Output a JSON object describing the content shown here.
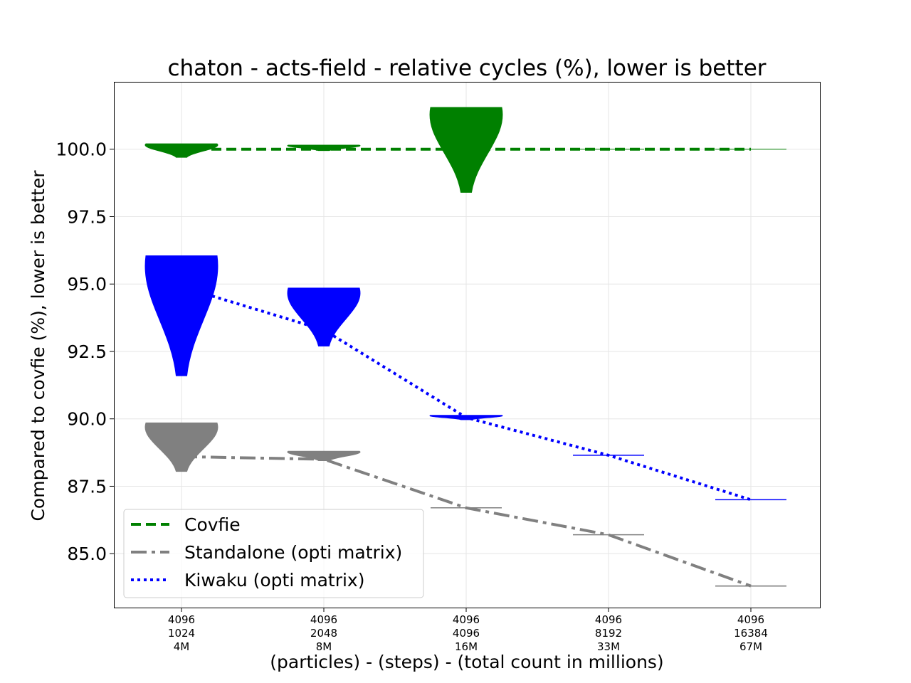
{
  "chart_data": {
    "type": "line",
    "title": "chaton - acts-field - relative cycles (%), lower is better",
    "xlabel": "(particles) - (steps) - (total count in millions)",
    "ylabel": "Compared to covfie (%), lower is better",
    "ylim": [
      83.0,
      102.5
    ],
    "yticks": [
      85.0,
      87.5,
      90.0,
      92.5,
      95.0,
      97.5,
      100.0
    ],
    "ytick_labels": [
      "85.0",
      "87.5",
      "90.0",
      "92.5",
      "95.0",
      "97.5",
      "100.0"
    ],
    "grid": true,
    "legend_position": "bottom-left",
    "categories": [
      [
        "4096",
        "1024",
        "4M"
      ],
      [
        "4096",
        "2048",
        "8M"
      ],
      [
        "4096",
        "4096",
        "16M"
      ],
      [
        "4096",
        "8192",
        "33M"
      ],
      [
        "4096",
        "16384",
        "67M"
      ]
    ],
    "series": [
      {
        "name": "Covfie",
        "color": "#008000",
        "line_style": "dashed",
        "values": [
          100.0,
          100.0,
          100.0,
          100.0,
          100.0
        ],
        "distributions": [
          {
            "min": 99.7,
            "max": 100.2
          },
          {
            "min": 99.95,
            "max": 100.15
          },
          {
            "min": 98.4,
            "max": 101.55
          },
          {
            "min": 100.0,
            "max": 100.0
          },
          {
            "min": 100.0,
            "max": 100.0
          }
        ]
      },
      {
        "name": "Standalone (opti matrix)",
        "color": "#808080",
        "line_style": "dashdot",
        "values": [
          88.6,
          88.5,
          86.7,
          85.7,
          83.8
        ],
        "distributions": [
          {
            "min": 88.05,
            "max": 89.85
          },
          {
            "min": 88.45,
            "max": 88.8
          },
          {
            "min": 86.68,
            "max": 86.72
          },
          {
            "min": 85.68,
            "max": 85.72
          },
          {
            "min": 83.78,
            "max": 83.82
          }
        ]
      },
      {
        "name": "Kiwaku (opti matrix)",
        "color": "#0000ff",
        "line_style": "dotted",
        "values": [
          94.9,
          93.3,
          90.05,
          88.65,
          87.0
        ],
        "distributions": [
          {
            "min": 91.6,
            "max": 96.05
          },
          {
            "min": 92.7,
            "max": 94.85
          },
          {
            "min": 89.97,
            "max": 90.13
          },
          {
            "min": 88.63,
            "max": 88.67
          },
          {
            "min": 86.98,
            "max": 87.02
          }
        ]
      }
    ]
  }
}
